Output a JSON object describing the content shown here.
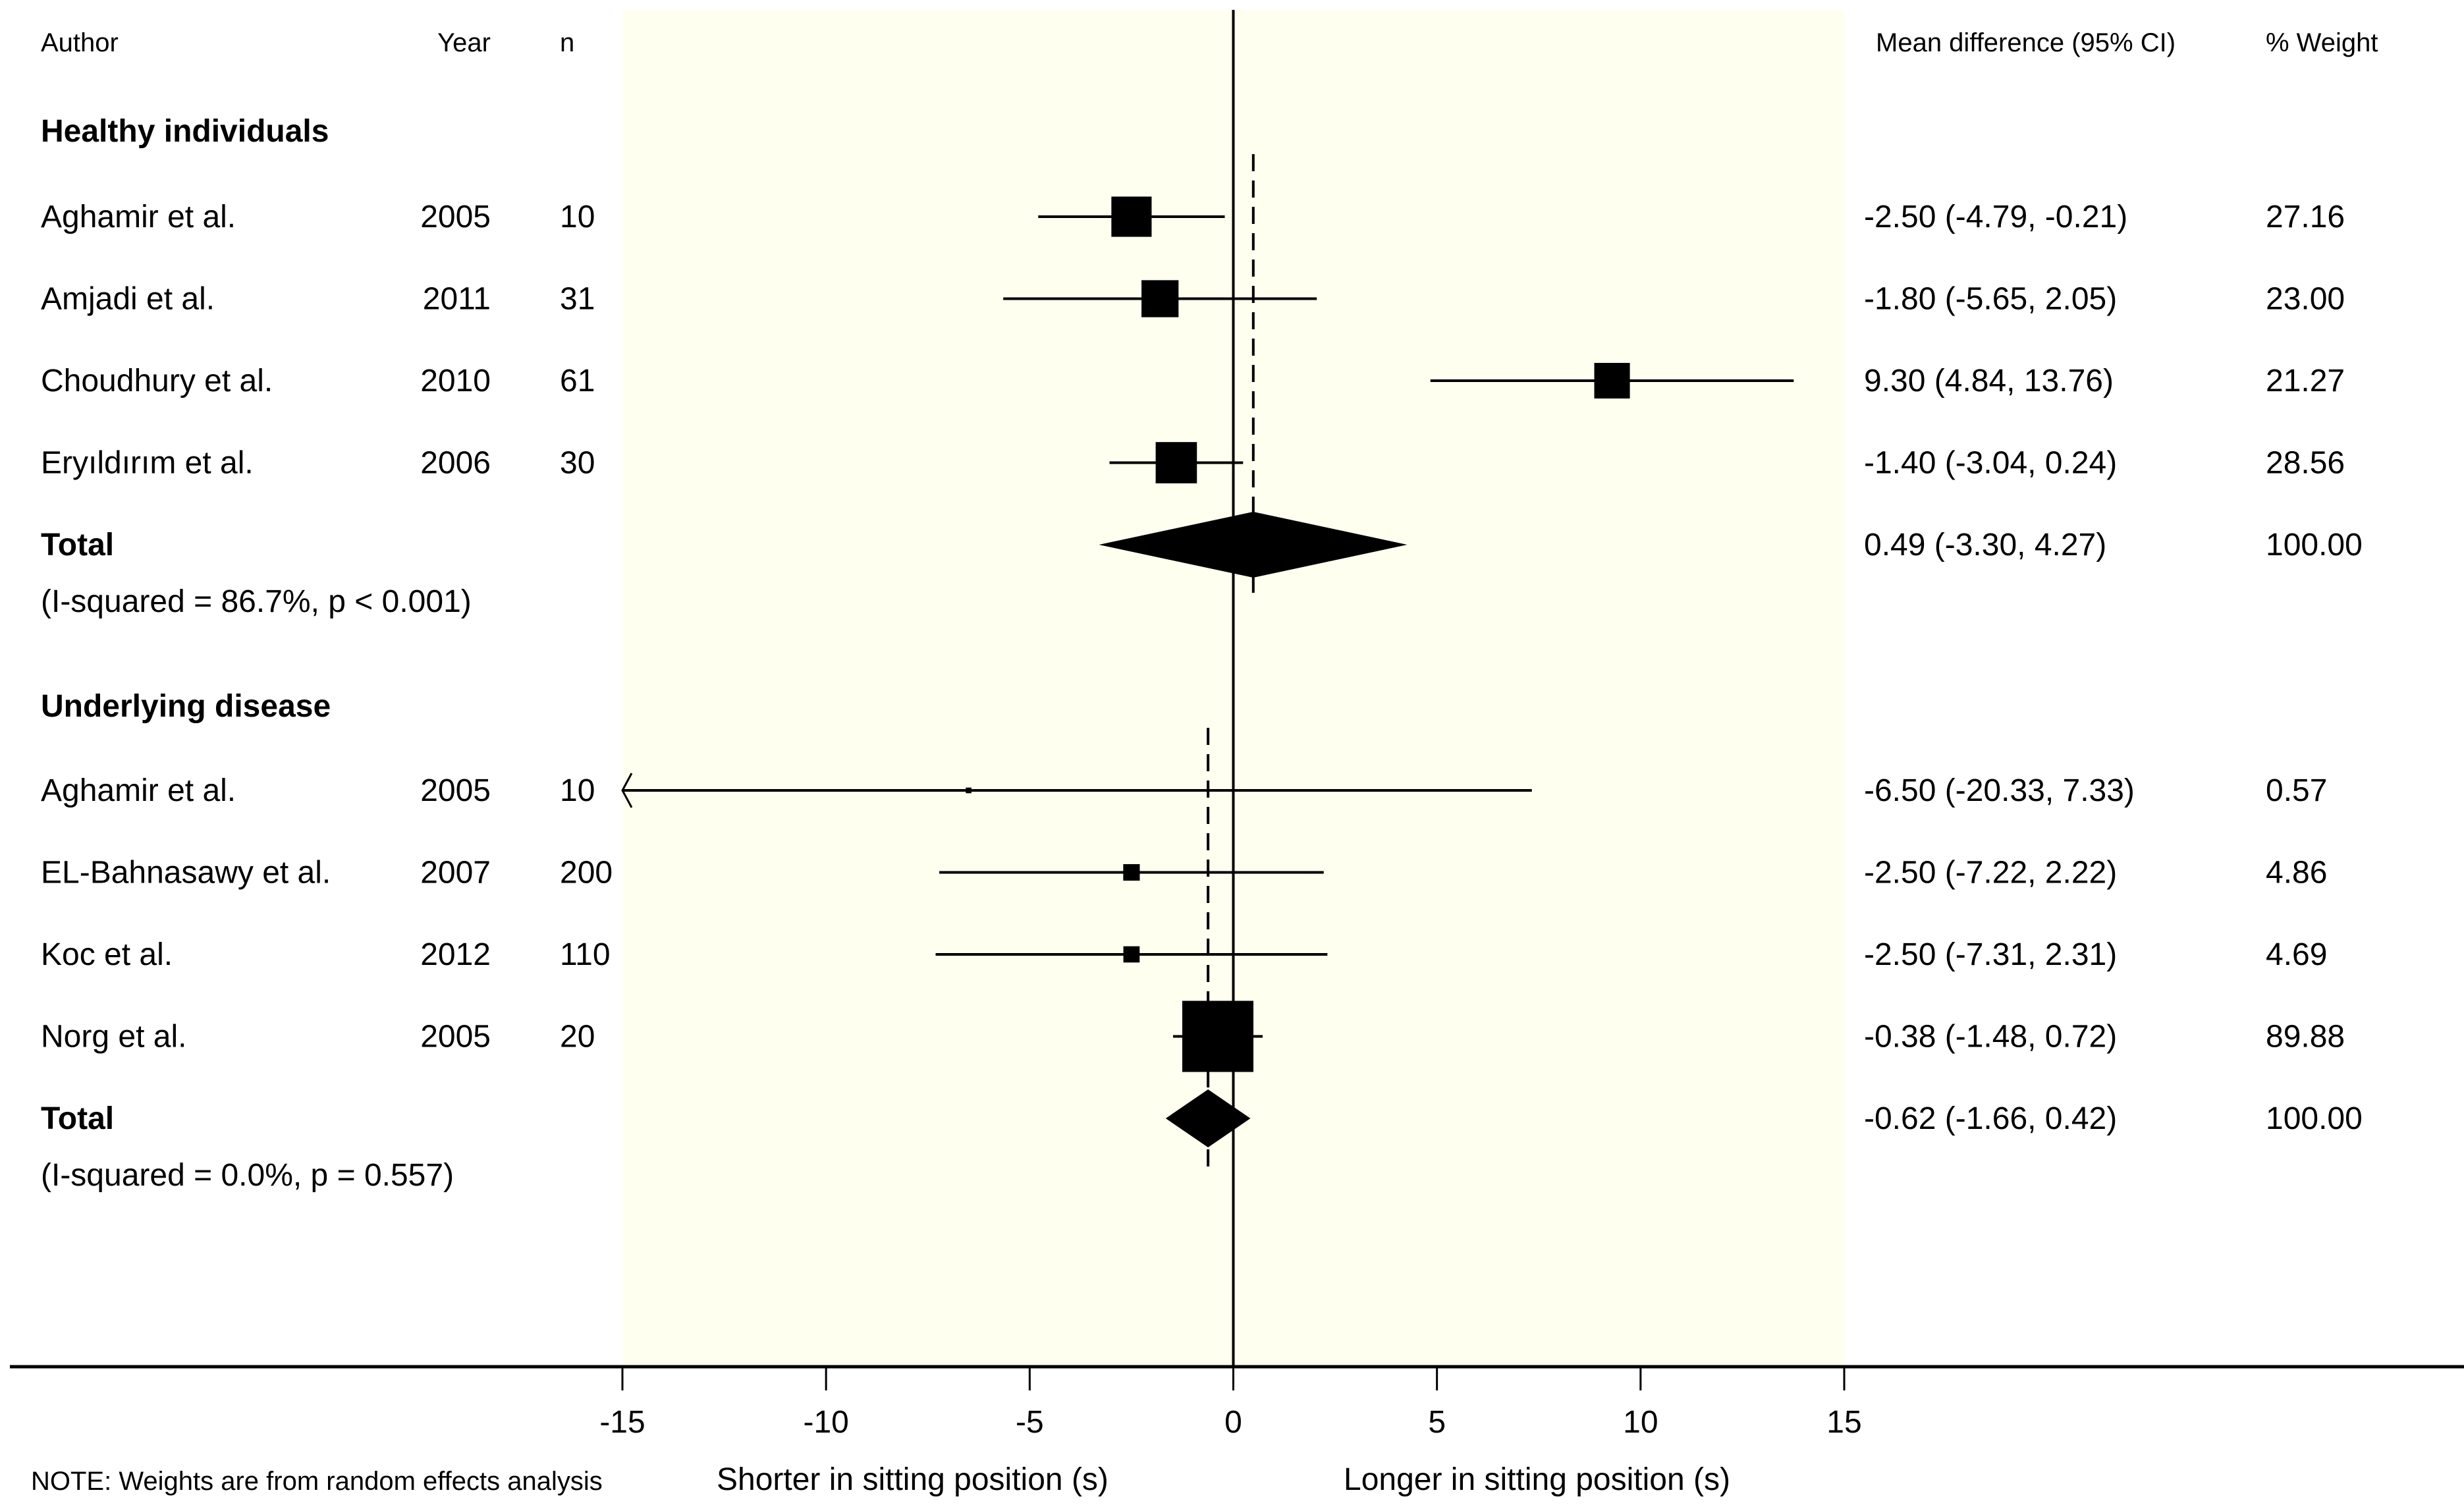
{
  "colors": {
    "plot_background": "#fffff0",
    "marks": "#000000"
  },
  "chart_data": {
    "type": "forest",
    "xlim": [
      -15,
      15
    ],
    "xticks": [
      "-15",
      "-10",
      "-5",
      "0",
      "5",
      "10",
      "15"
    ],
    "xtick_values": [
      -15,
      -10,
      -5,
      0,
      5,
      10,
      15
    ],
    "xlabel_left": "Shorter in sitting position (s)",
    "xlabel_right": "Longer in sitting position (s)",
    "note": "NOTE: Weights are from random effects analysis",
    "columns": {
      "author": "Author",
      "year": "Year",
      "n": "n",
      "effect": "Mean difference (95% CI)",
      "weight": "% Weight"
    },
    "groups": [
      {
        "label": "Healthy individuals",
        "studies": [
          {
            "author": "Aghamir et al.",
            "year": "2005",
            "n": "10",
            "md": -2.5,
            "lo": -4.79,
            "hi": -0.21,
            "effect_text": "-2.50 (-4.79, -0.21)",
            "weight": 27.16,
            "weight_text": "27.16"
          },
          {
            "author": "Amjadi et al.",
            "year": "2011",
            "n": "31",
            "md": -1.8,
            "lo": -5.65,
            "hi": 2.05,
            "effect_text": "-1.80 (-5.65, 2.05)",
            "weight": 23.0,
            "weight_text": "23.00"
          },
          {
            "author": "Choudhury et al.",
            "year": "2010",
            "n": "61",
            "md": 9.3,
            "lo": 4.84,
            "hi": 13.76,
            "effect_text": "9.30 (4.84, 13.76)",
            "weight": 21.27,
            "weight_text": "21.27"
          },
          {
            "author": "Eryıldırım et al.",
            "year": "2006",
            "n": "30",
            "md": -1.4,
            "lo": -3.04,
            "hi": 0.24,
            "effect_text": "-1.40 (-3.04, 0.24)",
            "weight": 28.56,
            "weight_text": "28.56"
          }
        ],
        "total": {
          "label": "Total",
          "md": 0.49,
          "lo": -3.3,
          "hi": 4.27,
          "effect_text": "0.49 (-3.30, 4.27)",
          "weight_text": "100.00"
        },
        "heterogeneity": "(I-squared = 86.7%, p < 0.001)"
      },
      {
        "label": "Underlying disease",
        "studies": [
          {
            "author": "Aghamir et al.",
            "year": "2005",
            "n": "10",
            "md": -6.5,
            "lo": -20.33,
            "hi": 7.33,
            "effect_text": "-6.50 (-20.33, 7.33)",
            "weight": 0.57,
            "weight_text": "0.57"
          },
          {
            "author": "EL-Bahnasawy et al.",
            "year": "2007",
            "n": "200",
            "md": -2.5,
            "lo": -7.22,
            "hi": 2.22,
            "effect_text": "-2.50 (-7.22, 2.22)",
            "weight": 4.86,
            "weight_text": "4.86"
          },
          {
            "author": "Koc et al.",
            "year": "2012",
            "n": "110",
            "md": -2.5,
            "lo": -7.31,
            "hi": 2.31,
            "effect_text": "-2.50 (-7.31, 2.31)",
            "weight": 4.69,
            "weight_text": "4.69"
          },
          {
            "author": "Norg et al.",
            "year": "2005",
            "n": "20",
            "md": -0.38,
            "lo": -1.48,
            "hi": 0.72,
            "effect_text": "-0.38 (-1.48, 0.72)",
            "weight": 89.88,
            "weight_text": "89.88"
          }
        ],
        "total": {
          "label": "Total",
          "md": -0.62,
          "lo": -1.66,
          "hi": 0.42,
          "effect_text": "-0.62 (-1.66, 0.42)",
          "weight_text": "100.00"
        },
        "heterogeneity": "(I-squared = 0.0%, p = 0.557)"
      }
    ]
  }
}
